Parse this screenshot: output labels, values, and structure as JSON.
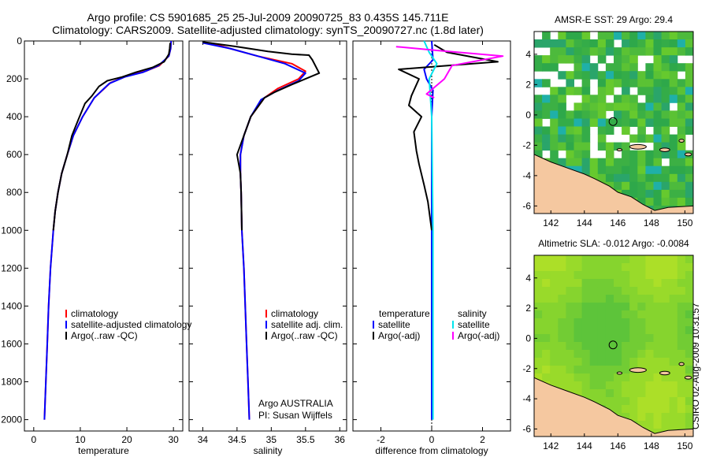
{
  "title_line1": "Argo profile: CS 5901685_25 25-Jul-2009 20090725_83 0.435S 145.711E",
  "title_line2": "Climatology: CARS2009. Satellite-adjusted climatology: synTS_20090727.nc (1.8d later)",
  "stamp": "CSIRO 02-Aug-2009 10:31:57",
  "colors": {
    "climatology": "#ff0000",
    "satellite": "#0000ff",
    "argo": "#000000",
    "sat_diff": "#00e5ee",
    "argo_adj_sal": "#ff00ff",
    "land": "#f5c8a0"
  },
  "chart_data": [
    {
      "type": "line",
      "xlabel": "temperature",
      "xlim": [
        -2,
        32
      ],
      "ylim": [
        2060,
        0
      ],
      "xticks": [
        0,
        10,
        20,
        30
      ],
      "yticks": [
        0,
        200,
        400,
        600,
        800,
        1000,
        1200,
        1400,
        1600,
        1800,
        2000
      ],
      "legend": [
        "climatology",
        "satellite-adjusted climatology",
        "Argo(..raw -QC)"
      ],
      "legend_placement": "bottom-right",
      "series": [
        {
          "name": "climatology",
          "color": "#ff0000",
          "points": [
            [
              29.5,
              0
            ],
            [
              29.4,
              40
            ],
            [
              29.0,
              80
            ],
            [
              27.0,
              130
            ],
            [
              24.0,
              160
            ],
            [
              20.0,
              185
            ],
            [
              16.5,
              220
            ],
            [
              13.0,
              300
            ],
            [
              10.5,
              400
            ],
            [
              8.5,
              500
            ],
            [
              7.2,
              600
            ],
            [
              6.0,
              700
            ],
            [
              5.2,
              800
            ],
            [
              4.6,
              900
            ],
            [
              4.2,
              1000
            ],
            [
              3.6,
              1200
            ],
            [
              3.2,
              1400
            ],
            [
              2.9,
              1600
            ],
            [
              2.6,
              1800
            ],
            [
              2.3,
              2000
            ]
          ]
        },
        {
          "name": "satellite-adjusted climatology",
          "color": "#0000ff",
          "points": [
            [
              29.5,
              0
            ],
            [
              29.4,
              40
            ],
            [
              29.0,
              80
            ],
            [
              26.8,
              130
            ],
            [
              23.5,
              165
            ],
            [
              19.5,
              190
            ],
            [
              16.2,
              225
            ],
            [
              13.0,
              300
            ],
            [
              10.5,
              400
            ],
            [
              8.5,
              500
            ],
            [
              7.2,
              600
            ],
            [
              6.0,
              700
            ],
            [
              5.2,
              800
            ],
            [
              4.6,
              900
            ],
            [
              4.2,
              1000
            ],
            [
              3.6,
              1200
            ],
            [
              3.2,
              1400
            ],
            [
              2.9,
              1600
            ],
            [
              2.6,
              1800
            ],
            [
              2.3,
              2000
            ]
          ]
        },
        {
          "name": "Argo(..raw -QC)",
          "color": "#000000",
          "points": [
            [
              29.3,
              10
            ],
            [
              29.2,
              40
            ],
            [
              29.0,
              70
            ],
            [
              28.0,
              110
            ],
            [
              25.5,
              140
            ],
            [
              22.0,
              165
            ],
            [
              19.0,
              190
            ],
            [
              15.8,
              210
            ],
            [
              14.0,
              240
            ],
            [
              12.5,
              290
            ],
            [
              11.0,
              330
            ],
            [
              9.5,
              420
            ],
            [
              8.2,
              500
            ],
            [
              7.2,
              600
            ],
            [
              6.0,
              700
            ],
            [
              5.2,
              800
            ],
            [
              4.6,
              900
            ],
            [
              4.2,
              1000
            ]
          ]
        }
      ]
    },
    {
      "type": "line",
      "xlabel": "salinity",
      "xlim": [
        33.8,
        36.1
      ],
      "ylim": [
        2060,
        0
      ],
      "xticks": [
        34,
        34.5,
        35,
        35.5,
        36
      ],
      "legend": [
        "climatology",
        "satellite adj. clim.",
        "Argo(..raw -QC)"
      ],
      "legend_placement": "bottom-right",
      "annotation_line1": "Argo AUSTRALIA",
      "annotation_line2": "PI: Susan Wijffels",
      "series": [
        {
          "name": "climatology",
          "color": "#ff0000",
          "points": [
            [
              34.1,
              10
            ],
            [
              34.4,
              40
            ],
            [
              34.8,
              80
            ],
            [
              35.3,
              120
            ],
            [
              35.5,
              160
            ],
            [
              35.4,
              200
            ],
            [
              35.1,
              250
            ],
            [
              34.9,
              300
            ],
            [
              34.7,
              400
            ],
            [
              34.6,
              500
            ],
            [
              34.55,
              600
            ],
            [
              34.55,
              700
            ],
            [
              34.56,
              800
            ],
            [
              34.57,
              1000
            ],
            [
              34.6,
              1200
            ],
            [
              34.62,
              1400
            ],
            [
              34.64,
              1600
            ],
            [
              34.66,
              1800
            ],
            [
              34.68,
              2000
            ]
          ]
        },
        {
          "name": "satellite adj. clim.",
          "color": "#0000ff",
          "points": [
            [
              34.0,
              10
            ],
            [
              34.4,
              40
            ],
            [
              34.8,
              80
            ],
            [
              35.2,
              120
            ],
            [
              35.5,
              170
            ],
            [
              35.4,
              210
            ],
            [
              35.1,
              260
            ],
            [
              34.85,
              310
            ],
            [
              34.7,
              400
            ],
            [
              34.6,
              500
            ],
            [
              34.55,
              600
            ],
            [
              34.55,
              700
            ],
            [
              34.56,
              800
            ],
            [
              34.57,
              1000
            ],
            [
              34.6,
              1200
            ],
            [
              34.62,
              1400
            ],
            [
              34.64,
              1600
            ],
            [
              34.66,
              1800
            ],
            [
              34.68,
              2000
            ]
          ]
        },
        {
          "name": "Argo(..raw -QC)",
          "color": "#000000",
          "points": [
            [
              34.0,
              5
            ],
            [
              34.5,
              30
            ],
            [
              34.95,
              55
            ],
            [
              35.3,
              70
            ],
            [
              35.55,
              75
            ],
            [
              35.6,
              100
            ],
            [
              35.7,
              170
            ],
            [
              35.5,
              200
            ],
            [
              35.3,
              230
            ],
            [
              35.05,
              270
            ],
            [
              34.9,
              300
            ],
            [
              34.7,
              400
            ],
            [
              34.6,
              500
            ],
            [
              34.5,
              600
            ],
            [
              34.55,
              700
            ],
            [
              34.56,
              800
            ],
            [
              34.57,
              1000
            ]
          ]
        }
      ]
    },
    {
      "type": "line",
      "xlabel": "difference from climatology",
      "xlim": [
        -3.1,
        3.1
      ],
      "ylim": [
        2060,
        0
      ],
      "xticks": [
        -2,
        0,
        2
      ],
      "legend_left_title": "temperature",
      "legend_left": [
        "satellite",
        "Argo(-adj)"
      ],
      "legend_right_title": "salinity",
      "legend_right": [
        "satellite",
        "Argo(-adj)"
      ],
      "series": [
        {
          "name": "temperature satellite",
          "color": "#0000ff",
          "points": [
            [
              0,
              0
            ],
            [
              0.05,
              100
            ],
            [
              -0.3,
              150
            ],
            [
              -0.2,
              200
            ],
            [
              0.05,
              260
            ],
            [
              0,
              400
            ],
            [
              0,
              2000
            ]
          ]
        },
        {
          "name": "temperature Argo(-adj)",
          "color": "#000000",
          "points": [
            [
              0.1,
              20
            ],
            [
              0.6,
              60
            ],
            [
              2.6,
              110
            ],
            [
              -1.3,
              150
            ],
            [
              -0.5,
              200
            ],
            [
              -0.8,
              290
            ],
            [
              -0.9,
              340
            ],
            [
              -0.4,
              400
            ],
            [
              -0.7,
              480
            ],
            [
              -0.6,
              580
            ],
            [
              -0.5,
              650
            ],
            [
              -0.3,
              760
            ],
            [
              -0.15,
              850
            ],
            [
              -0.05,
              950
            ],
            [
              0,
              1000
            ]
          ]
        },
        {
          "name": "salinity satellite",
          "color": "#00e5ee",
          "points": [
            [
              -0.3,
              0
            ],
            [
              -0.1,
              60
            ],
            [
              0.2,
              120
            ],
            [
              -0.1,
              200
            ],
            [
              0,
              400
            ],
            [
              0.05,
              1000
            ],
            [
              0.05,
              2000
            ]
          ]
        },
        {
          "name": "salinity Argo(-adj)",
          "color": "#ff00ff",
          "points": [
            [
              -1.4,
              30
            ],
            [
              0.2,
              50
            ],
            [
              2.8,
              80
            ],
            [
              0.8,
              130
            ],
            [
              0.5,
              200
            ],
            [
              -0.2,
              280
            ],
            [
              0.1,
              300
            ]
          ]
        }
      ]
    },
    {
      "type": "heatmap",
      "title": "AMSR-E SST: 29 Argo: 29.4",
      "xlim": [
        141,
        150.5
      ],
      "ylim": [
        -6.5,
        5.5
      ],
      "xticks": [
        142,
        144,
        146,
        148,
        150
      ],
      "yticks": [
        4,
        2,
        0,
        -2,
        -4,
        -6
      ],
      "marker": [
        145.711,
        -0.435
      ]
    },
    {
      "type": "heatmap",
      "title": "Altimetric SLA: -0.012 Argo: -0.0084",
      "xlim": [
        141,
        150.5
      ],
      "ylim": [
        -6.5,
        5.5
      ],
      "xticks": [
        142,
        144,
        146,
        148,
        150
      ],
      "yticks": [
        4,
        2,
        0,
        -2,
        -4,
        -6
      ],
      "marker": [
        145.711,
        -0.435
      ]
    }
  ]
}
